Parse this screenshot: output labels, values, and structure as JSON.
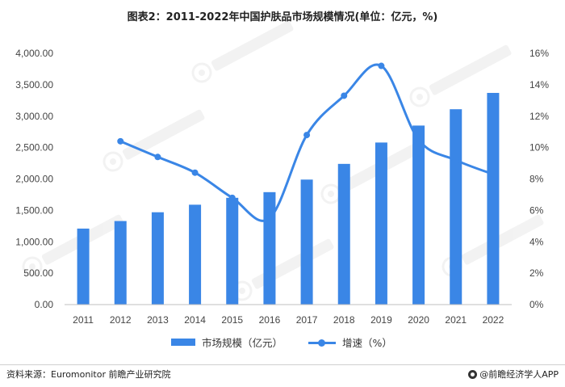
{
  "title": "图表2：2011-2022年中国护肤品市场规模情况(单位：亿元，%)",
  "chart_data": {
    "type": "bar",
    "categories": [
      "2011",
      "2012",
      "2013",
      "2014",
      "2015",
      "2016",
      "2017",
      "2018",
      "2019",
      "2020",
      "2021",
      "2022"
    ],
    "series": [
      {
        "name": "市场规模（亿元）",
        "type": "bar",
        "axis": "left",
        "values": [
          1210,
          1330,
          1470,
          1590,
          1700,
          1790,
          1990,
          2240,
          2580,
          2850,
          3110,
          3370
        ]
      },
      {
        "name": "增速（%）",
        "type": "line",
        "axis": "right",
        "values": [
          null,
          10.4,
          9.4,
          8.4,
          6.8,
          5.5,
          10.8,
          13.3,
          15.2,
          10.5,
          9.2,
          8.3
        ]
      }
    ],
    "y_left": {
      "min": 0,
      "max": 4000,
      "step": 500,
      "tick_labels": [
        "0.00",
        "500.00",
        "1,000.00",
        "1,500.00",
        "2,000.00",
        "2,500.00",
        "3,000.00",
        "3,500.00",
        "4,000.00"
      ]
    },
    "y_right": {
      "min": 0,
      "max": 16,
      "step": 2,
      "tick_labels": [
        "0%",
        "2%",
        "4%",
        "6%",
        "8%",
        "10%",
        "12%",
        "14%",
        "16%"
      ]
    },
    "legend_position": "bottom",
    "grid": false,
    "colors": {
      "bar": "#3a86e6",
      "line": "#3a86e6"
    }
  },
  "legend": {
    "bar_label": "市场规模（亿元）",
    "line_label": "增速（%）"
  },
  "footer": {
    "source": "资料来源：Euromonitor 前瞻产业研究院",
    "brand": "@前瞻经济学人APP"
  }
}
